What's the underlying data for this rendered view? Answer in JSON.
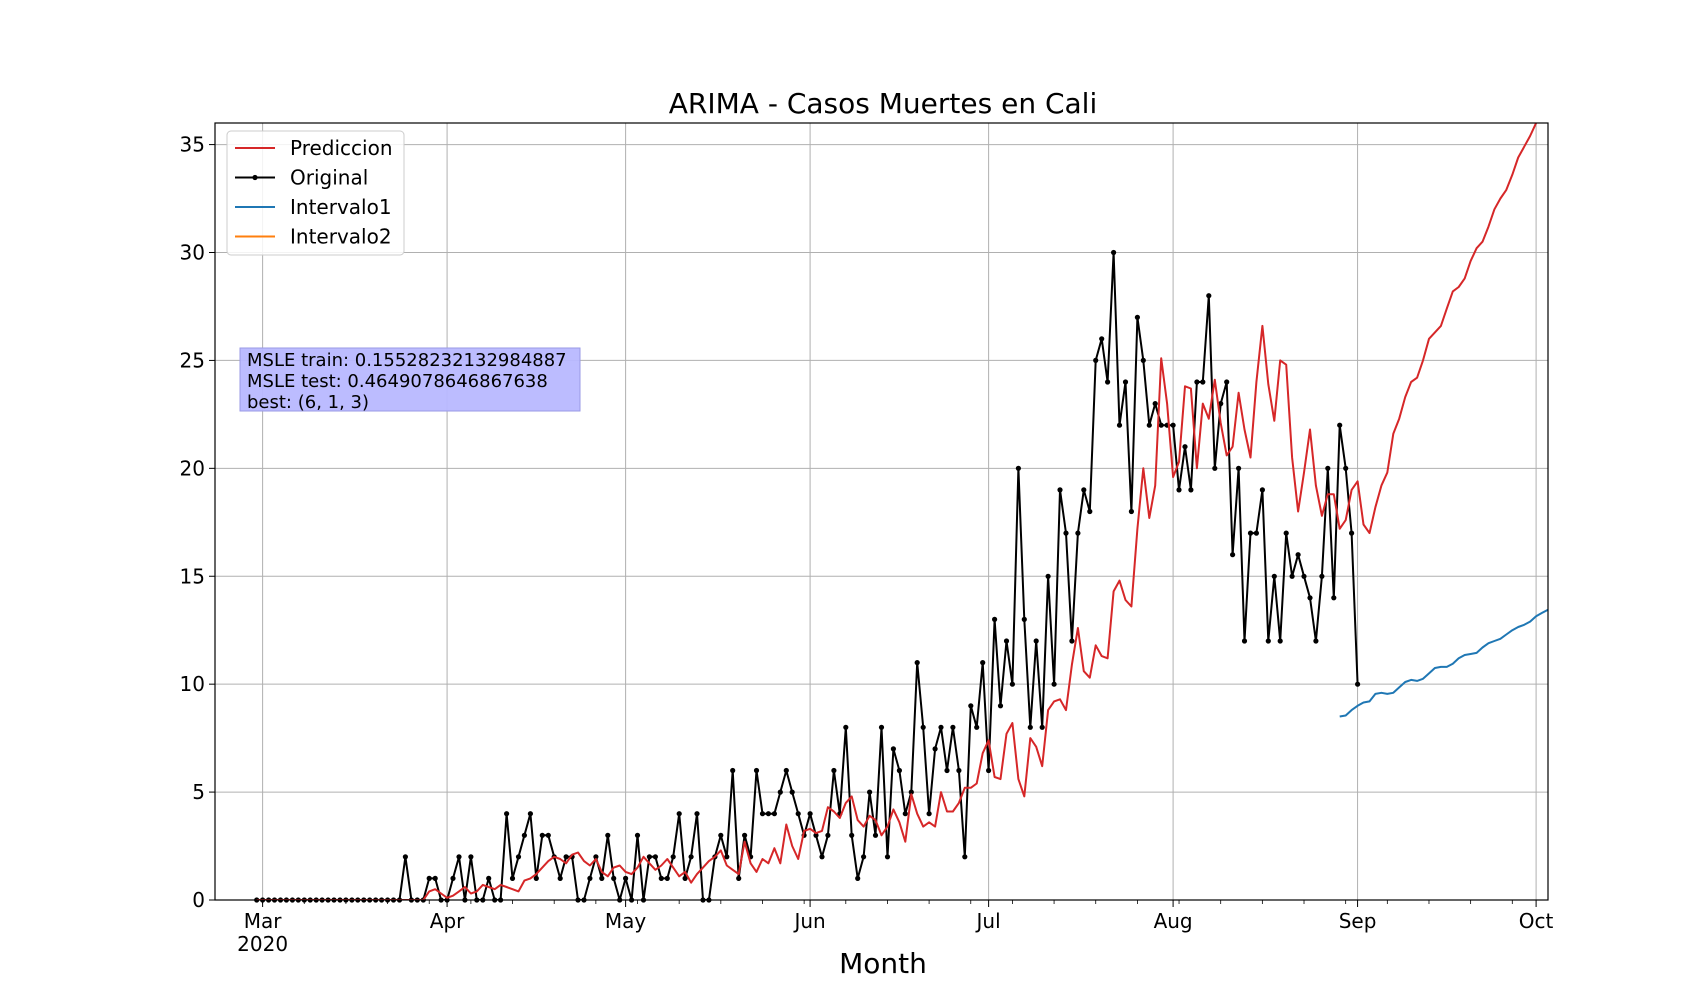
{
  "chart_data": {
    "type": "line",
    "title": "ARIMA - Casos Muertes en Cali",
    "xlabel": "Month",
    "ylabel": "",
    "ylim": [
      0,
      36
    ],
    "xlim": [
      "2020-02-22",
      "2020-10-03"
    ],
    "grid": true,
    "legend_position": "top-left",
    "x_ticks": [
      {
        "date": "2020-03-01",
        "label": "Mar",
        "sublabel": "2020"
      },
      {
        "date": "2020-04-01",
        "label": "Apr",
        "sublabel": ""
      },
      {
        "date": "2020-05-01",
        "label": "May",
        "sublabel": ""
      },
      {
        "date": "2020-06-01",
        "label": "Jun",
        "sublabel": ""
      },
      {
        "date": "2020-07-01",
        "label": "Jul",
        "sublabel": ""
      },
      {
        "date": "2020-08-01",
        "label": "Aug",
        "sublabel": ""
      },
      {
        "date": "2020-09-01",
        "label": "Sep",
        "sublabel": ""
      },
      {
        "date": "2020-10-01",
        "label": "Oct",
        "sublabel": ""
      }
    ],
    "y_ticks": [
      0,
      5,
      10,
      15,
      20,
      25,
      30,
      35
    ],
    "annotation": {
      "lines": [
        "MSLE train: 0.15528232132984887",
        "MSLE test: 0.4649078646867638",
        "best: (6, 1, 3)"
      ],
      "background": "#b8b8ff"
    },
    "series": [
      {
        "name": "Prediccion",
        "color": "#d62728",
        "start_date": "2020-02-29",
        "values": [
          0,
          0,
          0,
          0,
          0,
          0,
          0,
          0,
          0,
          0,
          0,
          0,
          0,
          0,
          0,
          0,
          0,
          0,
          0,
          0,
          0,
          0,
          0,
          0,
          0,
          0,
          0,
          0,
          0,
          0.4,
          0.5,
          0.3,
          0.1,
          0.2,
          0.4,
          0.6,
          0.3,
          0.4,
          0.7,
          0.6,
          0.5,
          0.7,
          0.6,
          0.5,
          0.4,
          0.9,
          1.0,
          1.2,
          1.5,
          1.8,
          2.0,
          1.9,
          1.7,
          2.1,
          2.2,
          1.8,
          1.6,
          1.9,
          1.3,
          1.1,
          1.5,
          1.6,
          1.3,
          1.2,
          1.5,
          2.0,
          1.7,
          1.4,
          1.6,
          1.9,
          1.5,
          1.1,
          1.3,
          0.8,
          1.2,
          1.5,
          1.8,
          2.0,
          2.3,
          1.6,
          1.4,
          1.2,
          2.7,
          1.7,
          1.3,
          1.9,
          1.7,
          2.4,
          1.7,
          3.5,
          2.5,
          1.9,
          3.2,
          3.3,
          3.1,
          3.2,
          4.3,
          4.1,
          3.8,
          4.5,
          4.8,
          3.7,
          3.4,
          3.9,
          3.7,
          3.0,
          3.4,
          4.2,
          3.6,
          2.7,
          4.9,
          4.0,
          3.4,
          3.6,
          3.4,
          5.0,
          4.1,
          4.1,
          4.5,
          5.2,
          5.2,
          5.4,
          6.8,
          7.4,
          5.7,
          5.6,
          7.7,
          8.2,
          5.6,
          4.8,
          7.5,
          7.1,
          6.2,
          8.8,
          9.2,
          9.3,
          8.8,
          10.9,
          12.6,
          10.6,
          10.3,
          11.8,
          11.3,
          11.2,
          14.3,
          14.8,
          13.9,
          13.6,
          17.2,
          20.0,
          17.7,
          19.2,
          25.1,
          23.0,
          19.6,
          20.3,
          23.8,
          23.7,
          20.0,
          23.0,
          22.3,
          24.1,
          22.1,
          20.6,
          21.0,
          23.5,
          21.8,
          20.5,
          24.0,
          26.6,
          23.9,
          22.2,
          25.0,
          24.8,
          20.5,
          18.0,
          19.8,
          21.8,
          19.2,
          17.8,
          18.8,
          18.8,
          17.2,
          17.6,
          19.0,
          19.4,
          17.4,
          17.0,
          18.2,
          19.2,
          19.8,
          21.6,
          22.3,
          23.3,
          24.0,
          24.2,
          25.0,
          26.0,
          26.3,
          26.6,
          27.4,
          28.2,
          28.4,
          28.8,
          29.6,
          30.2,
          30.5,
          31.2,
          32.0,
          32.5,
          32.9,
          33.6,
          34.4,
          34.9,
          35.4,
          36.0
        ]
      },
      {
        "name": "Original",
        "color": "#000000",
        "start_date": "2020-02-29",
        "values": [
          0,
          0,
          0,
          0,
          0,
          0,
          0,
          0,
          0,
          0,
          0,
          0,
          0,
          0,
          0,
          0,
          0,
          0,
          0,
          0,
          0,
          0,
          0,
          0,
          0,
          2,
          0,
          0,
          0,
          1,
          1,
          0,
          0,
          1,
          2,
          0,
          2,
          0,
          0,
          1,
          0,
          0,
          4,
          1,
          2,
          3,
          4,
          1,
          3,
          3,
          2,
          1,
          2,
          2,
          0,
          0,
          1,
          2,
          1,
          3,
          1,
          0,
          1,
          0,
          3,
          0,
          2,
          2,
          1,
          1,
          2,
          4,
          1,
          2,
          4,
          0,
          0,
          2,
          3,
          2,
          6,
          1,
          3,
          2,
          6,
          4,
          4,
          4,
          5,
          6,
          5,
          4,
          3,
          4,
          3,
          2,
          3,
          6,
          4,
          8,
          3,
          1,
          2,
          5,
          3,
          8,
          2,
          7,
          6,
          4,
          5,
          11,
          8,
          4,
          7,
          8,
          6,
          8,
          6,
          2,
          9,
          8,
          11,
          6,
          13,
          9,
          12,
          10,
          20,
          13,
          8,
          12,
          8,
          15,
          10,
          19,
          17,
          12,
          17,
          19,
          18,
          25,
          26,
          24,
          30,
          22,
          24,
          18,
          27,
          25,
          22,
          23,
          22,
          22,
          22,
          19,
          21,
          19,
          24,
          24,
          28,
          20,
          23,
          24,
          16,
          20,
          12,
          17,
          17,
          19,
          12,
          15,
          12,
          17,
          15,
          16,
          15,
          14,
          12,
          15,
          20,
          14,
          22,
          20,
          17,
          10
        ]
      },
      {
        "name": "Intervalo1",
        "color": "#1f77b4",
        "start_date": "2020-08-29",
        "values": [
          8.5,
          8.55,
          8.8,
          9.0,
          9.15,
          9.2,
          9.55,
          9.6,
          9.55,
          9.6,
          9.85,
          10.1,
          10.2,
          10.15,
          10.25,
          10.5,
          10.75,
          10.8,
          10.8,
          10.95,
          11.2,
          11.35,
          11.4,
          11.45,
          11.7,
          11.9,
          12.0,
          12.1,
          12.3,
          12.5,
          12.65,
          12.75,
          12.9,
          13.15,
          13.3,
          13.45,
          13.55,
          13.8
        ]
      },
      {
        "name": "Intervalo2",
        "color": "#ff7f0e",
        "start_date": "2020-08-29",
        "values": []
      }
    ]
  }
}
